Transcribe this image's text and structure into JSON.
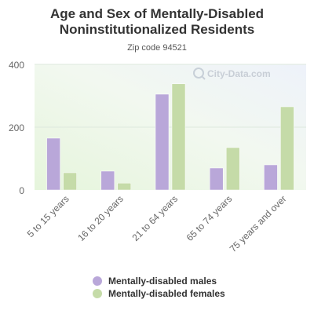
{
  "chart_data": {
    "type": "bar",
    "title_lines": [
      "Age and Sex of Mentally-Disabled",
      "Noninstitutionalized Residents"
    ],
    "subtitle": "Zip code 94521",
    "categories": [
      "5 to 15 years",
      "16 to 20 years",
      "21 to 64 years",
      "65 to 74 years",
      "75 years and over"
    ],
    "series": [
      {
        "name": "Mentally-disabled males",
        "color": "#b9a7d9",
        "values": [
          165,
          60,
          305,
          70,
          80
        ]
      },
      {
        "name": "Mentally-disabled females",
        "color": "#c5dba8",
        "values": [
          55,
          22,
          338,
          135,
          265
        ]
      }
    ],
    "ylim": [
      0,
      400
    ],
    "yticks": [
      0,
      200,
      400
    ],
    "grid": true,
    "legend_position": "bottom",
    "watermark": "City-Data.com"
  }
}
